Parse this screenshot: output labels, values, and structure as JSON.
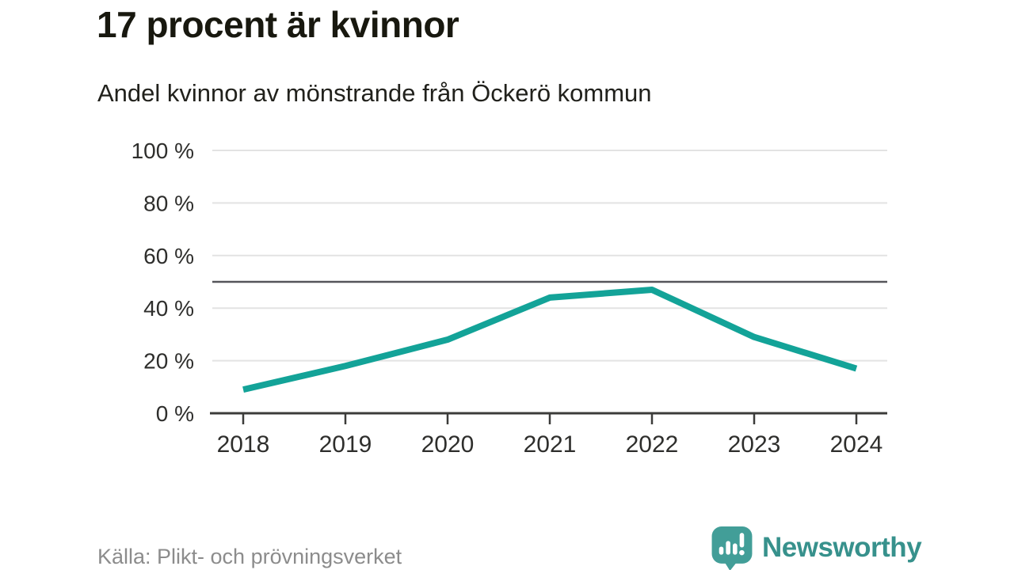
{
  "header": {
    "title": "17 procent är kvinnor",
    "subtitle": "Andel kvinnor av mönstrande från Öckerö kommun"
  },
  "footer": {
    "source": "Källa: Plikt- och prövningsverket",
    "brand": "Newsworthy",
    "brand_icon": "newsworthy-speech-bubble-barchart-icon",
    "brand_color": "#37918c",
    "brand_icon_color": "#429e98"
  },
  "chart_data": {
    "type": "line",
    "title": "17 procent är kvinnor",
    "subtitle": "Andel kvinnor av mönstrande från Öckerö kommun",
    "x": [
      2018,
      2019,
      2020,
      2021,
      2022,
      2023,
      2024
    ],
    "series": [
      {
        "name": "Andel kvinnor av mönstrande",
        "values": [
          9,
          18,
          28,
          44,
          47,
          29,
          17
        ]
      }
    ],
    "unit": "%",
    "ylim": [
      0,
      100
    ],
    "yticks": [
      0,
      20,
      40,
      60,
      80,
      100
    ],
    "ytick_format": "{v} %",
    "reference_line": 50,
    "grid": true,
    "legend": "none",
    "line_color": "#13a398",
    "gridline_color": "#e3e3e3",
    "reference_line_color": "#55555a",
    "axis_color": "#3c3c3a",
    "tick_label_color": "#2e2e2c"
  }
}
